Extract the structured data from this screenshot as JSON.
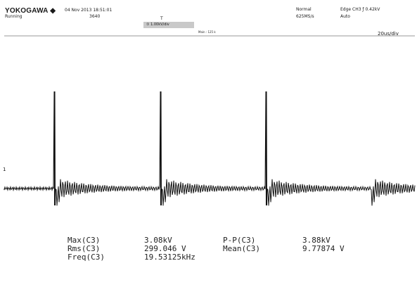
{
  "header": {
    "brand": "YOKOGAWA ◆",
    "status": "Running",
    "datetime": "04 Nov 2013 18:51:01",
    "acq_count": "3640",
    "mode": "Normal",
    "sample_rate": "625MS/s",
    "trigger": "Edge CH3 ƒ 0.42kV",
    "trigger_mode": "Auto"
  },
  "channel_bar": {
    "channel_label": "① 1.00kV/div",
    "trigger_pos_mark": "T"
  },
  "screen": {
    "main_label": "Main : 125 k",
    "time_div": "20us/div",
    "ground_marker": "1"
  },
  "measurements": {
    "col1_labels": [
      "Max(C3)",
      "Rms(C3)",
      "Freq(C3)"
    ],
    "col1_values": [
      "3.08kV",
      "299.046 V",
      "19.53125kHz"
    ],
    "col2_labels": [
      "P-P(C3)",
      "Mean(C3)"
    ],
    "col2_values": [
      "3.88kV",
      "9.77874 V"
    ]
  }
}
